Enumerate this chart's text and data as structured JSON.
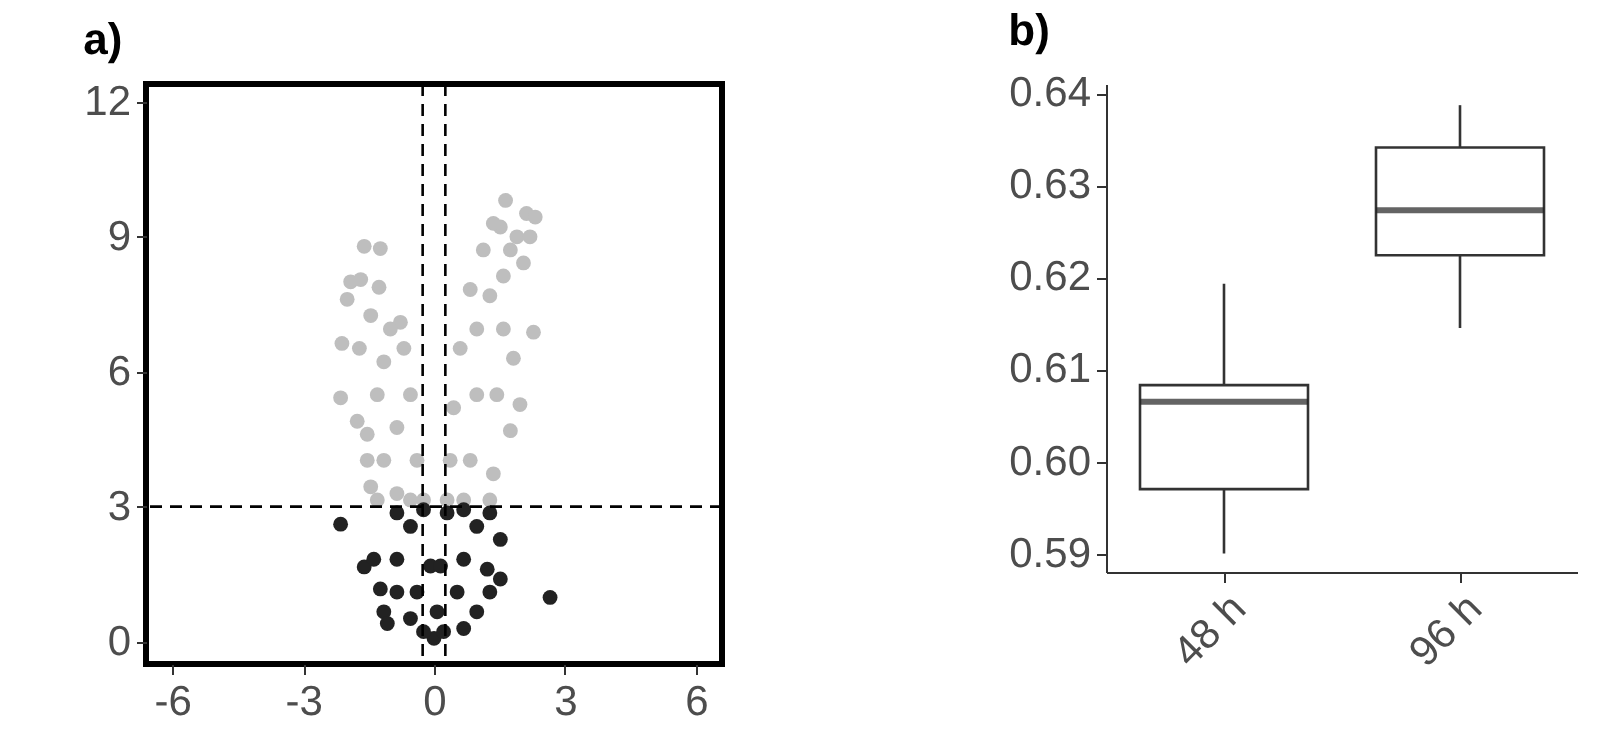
{
  "chart_data": [
    {
      "type": "scatter",
      "title": "a)",
      "xlim": [
        -6.6,
        6.6
      ],
      "xticks": [
        -6,
        -3,
        0,
        3,
        6
      ],
      "ylim": [
        -0.5,
        12.4
      ],
      "yticks": [
        0,
        3,
        6,
        9,
        12
      ],
      "marker": "circle",
      "ref_lines": [
        {
          "axis": "x",
          "value": -0.26,
          "color": "#000000",
          "line_style": "dashed"
        },
        {
          "axis": "x",
          "value": 0.26,
          "color": "#000000",
          "line_style": "dashed"
        },
        {
          "axis": "y",
          "value": 3,
          "color": "#000000",
          "line_style": "dashed"
        }
      ],
      "series": [
        {
          "color": "#bebebe",
          "x": [
            -1.6,
            -1.23,
            -1.91,
            -1.68,
            -1.26,
            -1.99,
            -2.11,
            -1.71,
            -2.14,
            -1.76,
            -0.77,
            -0.69,
            -0.54,
            -0.39,
            -0.24,
            -1.45,
            -1.53,
            -1.53,
            -1.0,
            -1.15,
            -1.3,
            -0.85,
            -1.15,
            -0.85,
            -0.54,
            -1.3,
            -1.45,
            1.64,
            2.12,
            2.32,
            1.52,
            1.9,
            2.2,
            2.05,
            1.75,
            2.28,
            1.82,
            1.97,
            1.75,
            1.13,
            0.83,
            0.6,
            0.45,
            0.37,
            0.3,
            1.28,
            1.36,
            1.44,
            1.59,
            1.28,
            0.98,
            0.98,
            0.83,
            0.68,
            1.59,
            1.36
          ],
          "values": [
            8.79,
            8.74,
            8.0,
            8.05,
            7.88,
            7.61,
            6.63,
            6.52,
            5.42,
            4.9,
            7.1,
            6.52,
            5.49,
            4.03,
            3.15,
            3.44,
            4.03,
            4.61,
            6.95,
            6.22,
            5.49,
            4.76,
            4.03,
            3.29,
            3.15,
            3.15,
            7.25,
            9.81,
            9.52,
            9.44,
            9.22,
            9.0,
            9.0,
            8.42,
            8.71,
            6.88,
            6.3,
            5.27,
            4.69,
            8.71,
            7.83,
            6.52,
            5.2,
            4.03,
            3.15,
            3.15,
            3.73,
            5.49,
            6.95,
            7.69,
            6.95,
            5.49,
            4.03,
            3.15,
            8.13,
            9.3
          ]
        },
        {
          "color": "#222222",
          "x": [
            -2.14,
            -1.6,
            -1.38,
            -1.23,
            -1.15,
            -1.07,
            -0.85,
            -0.24,
            -0.08,
            0,
            -0.24,
            0.22,
            0.68,
            0.98,
            1.28,
            1.52,
            1.52,
            1.28,
            0.68,
            0.3,
            0.15,
            2.66,
            -0.54,
            -0.85,
            -0.85,
            -0.54,
            0.68,
            0.98,
            0.53,
            1.22,
            0.07,
            -0.39
          ],
          "values": [
            2.61,
            1.66,
            1.83,
            1.17,
            0.66,
            0.4,
            2.86,
            2.93,
            1.68,
            0.07,
            0.22,
            0.22,
            0.29,
            0.66,
            1.1,
            1.39,
            2.27,
            2.86,
            2.93,
            2.86,
            1.68,
            0.98,
            2.56,
            1.83,
            1.1,
            0.51,
            1.83,
            2.56,
            1.1,
            1.61,
            0.66,
            1.1
          ]
        }
      ]
    },
    {
      "type": "box",
      "title": "b)",
      "categories": [
        "48 h",
        "96 h"
      ],
      "ylim": [
        0.588,
        0.641
      ],
      "yticks": [
        {
          "value": 0.59,
          "label": "0.59"
        },
        {
          "value": 0.6,
          "label": "0.60"
        },
        {
          "value": 0.61,
          "label": "0.61"
        },
        {
          "value": 0.62,
          "label": "0.62"
        },
        {
          "value": 0.63,
          "label": "0.63"
        },
        {
          "value": 0.64,
          "label": "0.64"
        }
      ],
      "boxes": [
        {
          "low": 0.59,
          "q1": 0.597,
          "median": 0.6065,
          "q3": 0.6083,
          "high": 0.6193
        },
        {
          "low": 0.6145,
          "q1": 0.6224,
          "median": 0.6273,
          "q3": 0.6341,
          "high": 0.6387
        }
      ]
    }
  ]
}
